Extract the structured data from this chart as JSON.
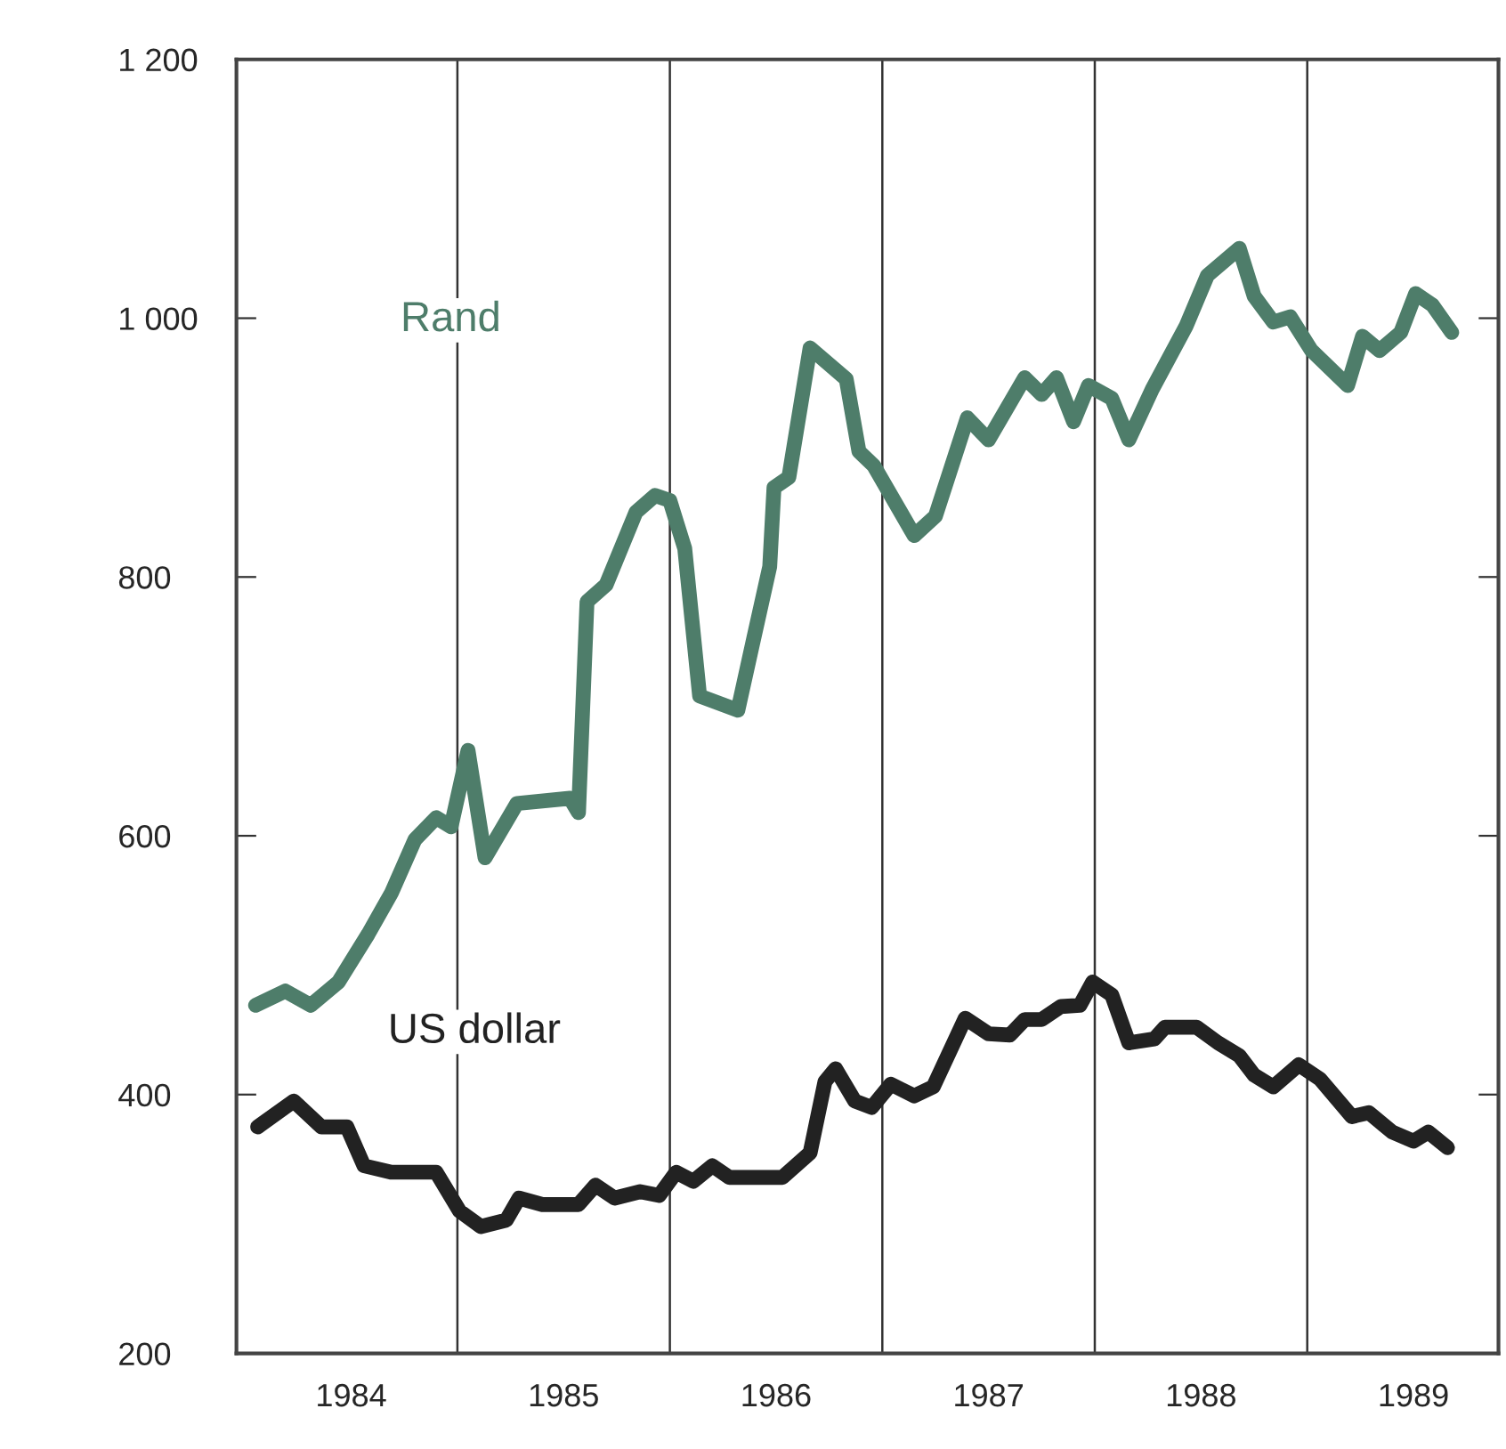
{
  "chart_data": {
    "type": "line",
    "xlim": [
      1983.96,
      1989.9
    ],
    "xticks": [
      {
        "value": 1984.5,
        "label": "1984"
      },
      {
        "value": 1985.5,
        "label": "1985"
      },
      {
        "value": 1986.5,
        "label": "1986"
      },
      {
        "value": 1987.5,
        "label": "1987"
      },
      {
        "value": 1988.5,
        "label": "1988"
      },
      {
        "value": 1989.5,
        "label": "1989"
      }
    ],
    "ylim": [
      200,
      1200
    ],
    "yticks": [
      200,
      400,
      600,
      800,
      {
        "value": 1000,
        "label": "1 000"
      },
      {
        "value": 1200,
        "label": "1 200"
      }
    ],
    "grid": false,
    "legend": false,
    "marker": "none",
    "line_style": "solid",
    "ref_lines": [
      {
        "axis": "x",
        "value": 1985,
        "color": "#333333"
      },
      {
        "axis": "x",
        "value": 1986,
        "color": "#333333"
      },
      {
        "axis": "x",
        "value": 1987,
        "color": "#333333"
      },
      {
        "axis": "x",
        "value": 1988,
        "color": "#333333"
      },
      {
        "axis": "x",
        "value": 1989,
        "color": "#333333"
      }
    ],
    "series": [
      {
        "name": "Rand",
        "color": "#4e7d6a",
        "x": [
          1984.05,
          1984.19,
          1984.31,
          1984.44,
          1984.58,
          1984.69,
          1984.8,
          1984.9,
          1984.97,
          1985.05,
          1985.13,
          1985.28,
          1985.53,
          1985.57,
          1985.61,
          1985.7,
          1985.84,
          1985.93,
          1986.0,
          1986.07,
          1986.14,
          1986.32,
          1986.39,
          1986.47,
          1986.49,
          1986.56,
          1986.66,
          1986.83,
          1986.89,
          1986.96,
          1987.15,
          1987.25,
          1987.4,
          1987.5,
          1987.67,
          1987.75,
          1987.82,
          1987.9,
          1987.97,
          1988.08,
          1988.16,
          1988.27,
          1988.43,
          1988.53,
          1988.68,
          1988.75,
          1988.84,
          1988.92,
          1989.02,
          1989.19,
          1989.26,
          1989.34,
          1989.44,
          1989.51,
          1989.59,
          1989.68
        ],
        "values": [
          469,
          480,
          469,
          487,
          524,
          556,
          597,
          614,
          607,
          666,
          583,
          625,
          629,
          618,
          781,
          794,
          850,
          863,
          859,
          822,
          708,
          697,
          749,
          808,
          869,
          877,
          977,
          953,
          897,
          886,
          832,
          847,
          923,
          906,
          954,
          941,
          954,
          920,
          948,
          938,
          906,
          945,
          994,
          1033,
          1054,
          1017,
          997,
          1001,
          975,
          948,
          986,
          975,
          989,
          1019,
          1010,
          989
        ]
      },
      {
        "name": "US dollar",
        "color": "#222222",
        "x": [
          1984.06,
          1984.23,
          1984.36,
          1984.48,
          1984.56,
          1984.69,
          1984.9,
          1985.01,
          1985.11,
          1985.23,
          1985.29,
          1985.4,
          1985.57,
          1985.65,
          1985.74,
          1985.86,
          1985.95,
          1986.03,
          1986.11,
          1986.2,
          1986.28,
          1986.53,
          1986.66,
          1986.73,
          1986.78,
          1986.87,
          1986.95,
          1987.04,
          1987.15,
          1987.24,
          1987.39,
          1987.5,
          1987.6,
          1987.67,
          1987.75,
          1987.84,
          1987.93,
          1987.99,
          1988.08,
          1988.16,
          1988.28,
          1988.33,
          1988.48,
          1988.58,
          1988.68,
          1988.75,
          1988.84,
          1988.96,
          1989.06,
          1989.21,
          1989.29,
          1989.4,
          1989.5,
          1989.57,
          1989.66
        ],
        "values": [
          375,
          395,
          375,
          375,
          345,
          340,
          340,
          310,
          298,
          303,
          320,
          315,
          315,
          330,
          320,
          325,
          322,
          340,
          333,
          345,
          336,
          336,
          355,
          410,
          420,
          395,
          390,
          408,
          399,
          406,
          459,
          447,
          446,
          458,
          458,
          468,
          469,
          487,
          477,
          440,
          443,
          452,
          452,
          440,
          430,
          415,
          406,
          423,
          412,
          383,
          386,
          371,
          364,
          371,
          359
        ]
      }
    ]
  }
}
